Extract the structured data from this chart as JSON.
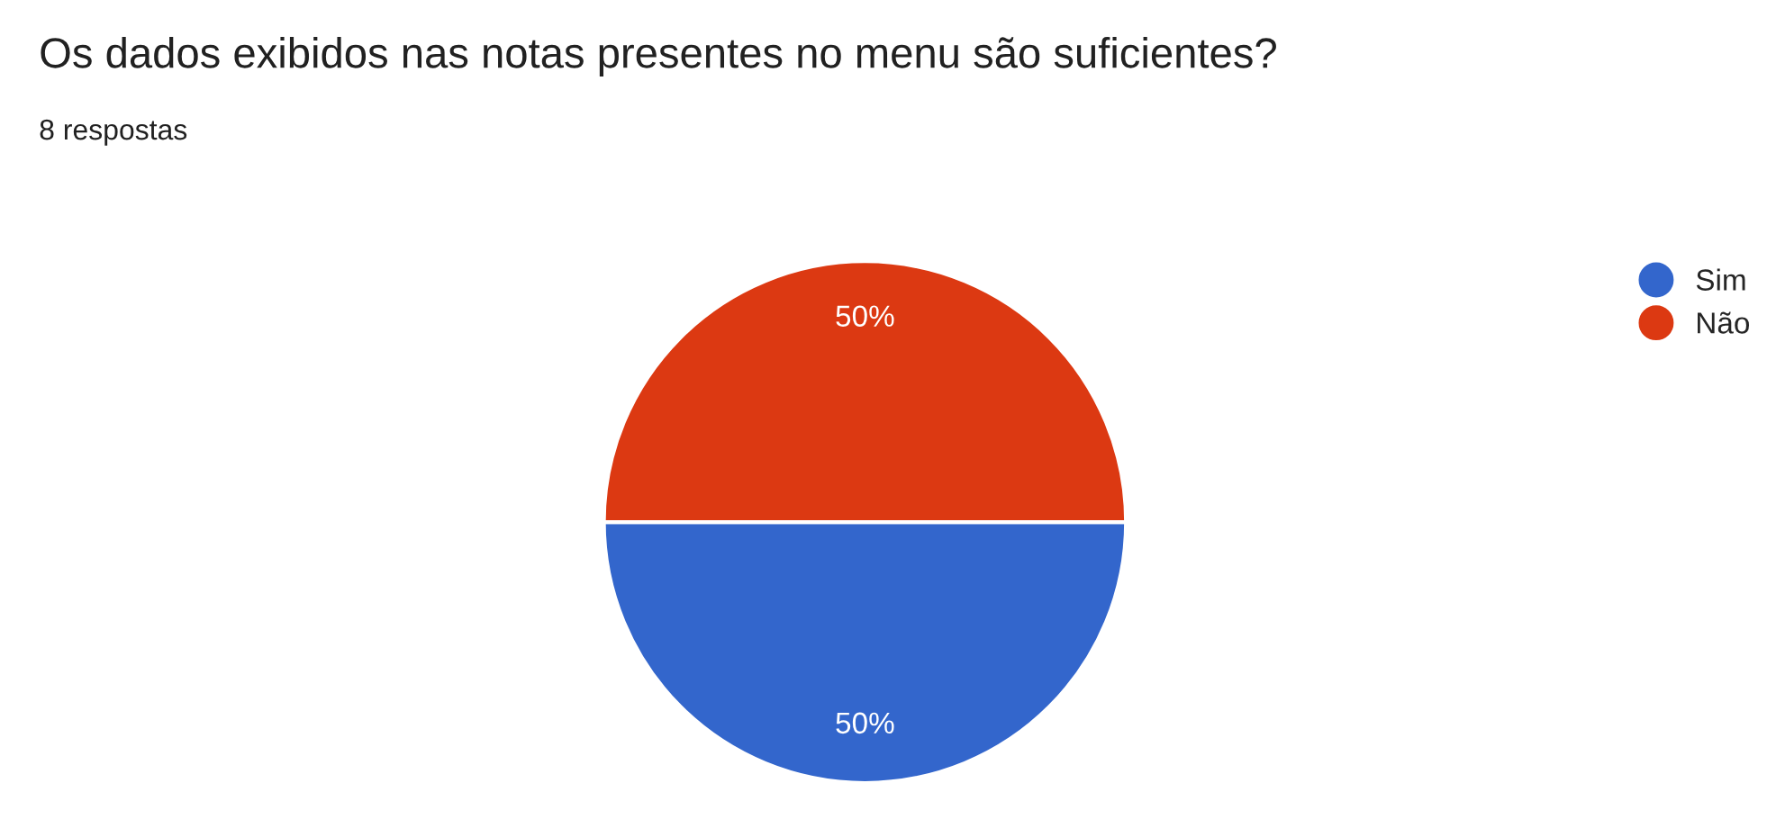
{
  "chart_data": {
    "type": "pie",
    "title": "Os dados exibidos nas notas presentes no menu são suficientes?",
    "subtitle": "8 respostas",
    "categories": [
      "Sim",
      "Não"
    ],
    "values": [
      50,
      50
    ],
    "colors": [
      "#3366cc",
      "#dc3912"
    ],
    "value_labels": [
      "50%",
      "50%"
    ],
    "legend": "top right"
  }
}
